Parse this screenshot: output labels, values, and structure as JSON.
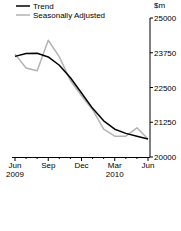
{
  "chart_data": {
    "type": "line",
    "y_label": "$m",
    "categories": [
      "Jun 2009",
      null,
      null,
      "Sep",
      null,
      null,
      "Dec",
      null,
      null,
      "Mar 2010",
      null,
      null,
      "Jun"
    ],
    "series": [
      {
        "name": "Trend",
        "color": "#000000",
        "values": [
          23620,
          23720,
          23730,
          23600,
          23300,
          22850,
          22300,
          21750,
          21300,
          21000,
          20850,
          20750,
          20650
        ]
      },
      {
        "name": "Seasonally Adjusted",
        "color": "#b3b3b3",
        "values": [
          23700,
          23200,
          23100,
          24200,
          23600,
          22750,
          22200,
          21700,
          21000,
          20750,
          20750,
          21050,
          20650
        ]
      }
    ],
    "ylim": [
      20000,
      25000
    ],
    "yticks": [
      20000,
      21250,
      22500,
      23750,
      25000
    ],
    "legend": "top-left"
  }
}
